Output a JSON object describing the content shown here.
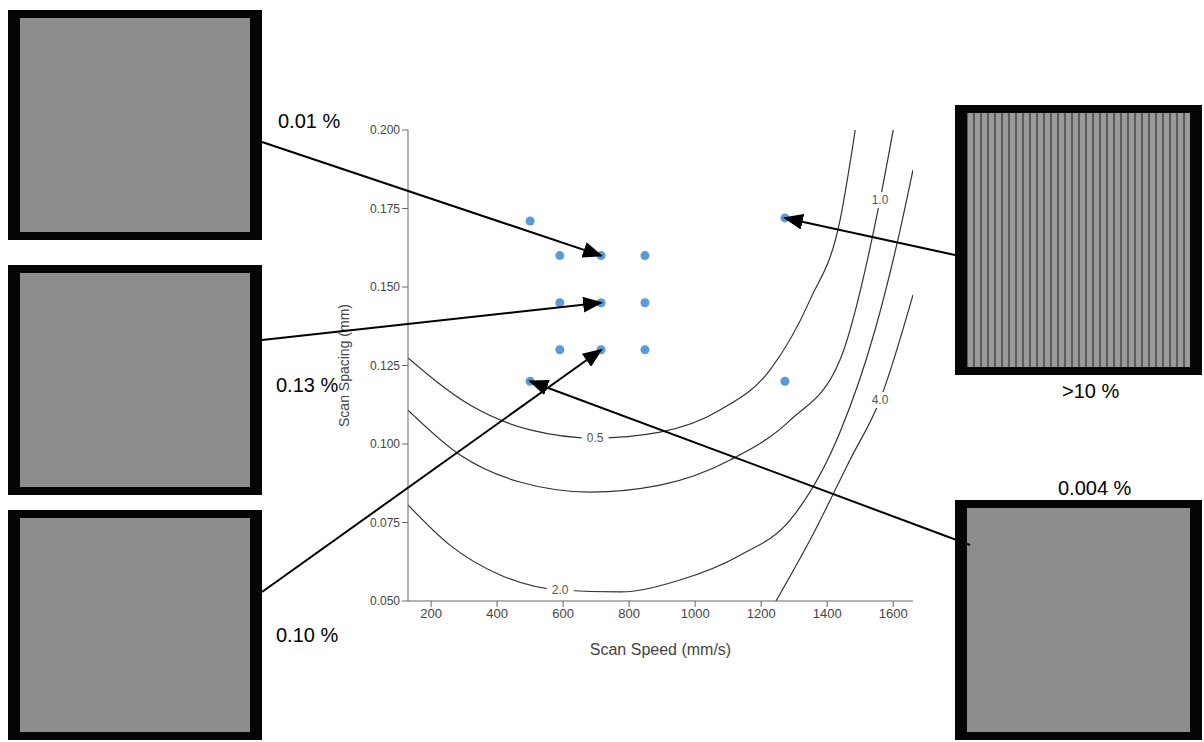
{
  "chart_data": {
    "type": "scatter",
    "x_label": "Scan Speed (mm/s)",
    "y_label": "Scan Spacing (mm)",
    "xlim": [
      130,
      1660
    ],
    "xticks": [
      200,
      400,
      600,
      800,
      1000,
      1200,
      1400,
      1600
    ],
    "ylim": [
      0.05,
      0.2
    ],
    "yticks": [
      {
        "value": 0.05,
        "label": "0.050"
      },
      {
        "value": 0.075,
        "label": "0.075"
      },
      {
        "value": 0.1,
        "label": "0.100"
      },
      {
        "value": 0.125,
        "label": "0.125"
      },
      {
        "value": 0.15,
        "label": "0.150"
      },
      {
        "value": 0.175,
        "label": "0.175"
      },
      {
        "value": 0.2,
        "label": "0.200"
      }
    ],
    "grid": false,
    "points": {
      "x": [
        500,
        590,
        715,
        848,
        590,
        715,
        848,
        590,
        715,
        848,
        500,
        1272,
        1272
      ],
      "y": [
        0.171,
        0.16,
        0.16,
        0.16,
        0.145,
        0.145,
        0.145,
        0.13,
        0.13,
        0.13,
        0.12,
        0.172,
        0.12
      ],
      "color": "#5b9bd5",
      "marker": "circle"
    },
    "contours": [
      {
        "level": {
          "value": 0.5,
          "label": "0.5"
        },
        "color": "#333333",
        "line_style": "solid",
        "x": [
          130,
          318,
          500,
          697,
          894,
          1075,
          1227,
          1348,
          1439,
          1485
        ],
        "y": [
          0.1274,
          0.1124,
          0.1045,
          0.1019,
          0.1038,
          0.1108,
          0.1236,
          0.1459,
          0.1713,
          0.2
        ]
      },
      {
        "level": {
          "value": 1,
          "label": "1.0"
        },
        "color": "#333333",
        "line_style": "solid",
        "x": [
          130,
          288,
          469,
          682,
          894,
          1106,
          1288,
          1439,
          1560,
          1600
        ],
        "y": [
          0.1108,
          0.0965,
          0.0879,
          0.0847,
          0.0869,
          0.0949,
          0.1076,
          0.1268,
          0.1777,
          0.2
        ]
      },
      {
        "level": {
          "value": 2,
          "label": "2.0"
        },
        "color": "#333333",
        "line_style": "solid",
        "x": [
          130,
          257,
          409,
          591,
          773,
          954,
          1136,
          1288,
          1439,
          1545,
          1621,
          1660
        ],
        "y": [
          0.0806,
          0.0678,
          0.0583,
          0.0535,
          0.0529,
          0.0567,
          0.0646,
          0.0758,
          0.1038,
          0.1363,
          0.1682,
          0.1873
        ]
      },
      {
        "level": {
          "value": 4,
          "label": "4.0"
        },
        "color": "#333333",
        "line_style": "solid",
        "x": [
          1245,
          1348,
          1469,
          1560,
          1660
        ],
        "y": [
          0.05,
          0.0694,
          0.0949,
          0.114,
          0.1475
        ]
      }
    ],
    "annotations": [
      {
        "text": "0.01 %",
        "x": 715,
        "y": 0.16
      },
      {
        "text": "0.13 %",
        "x": 715,
        "y": 0.145
      },
      {
        "text": "0.10 %",
        "x": 715,
        "y": 0.13
      },
      {
        "text": ">10 %",
        "x": 1272,
        "y": 0.172
      },
      {
        "text": "0.004 %",
        "x": 500,
        "y": 0.12
      }
    ]
  }
}
